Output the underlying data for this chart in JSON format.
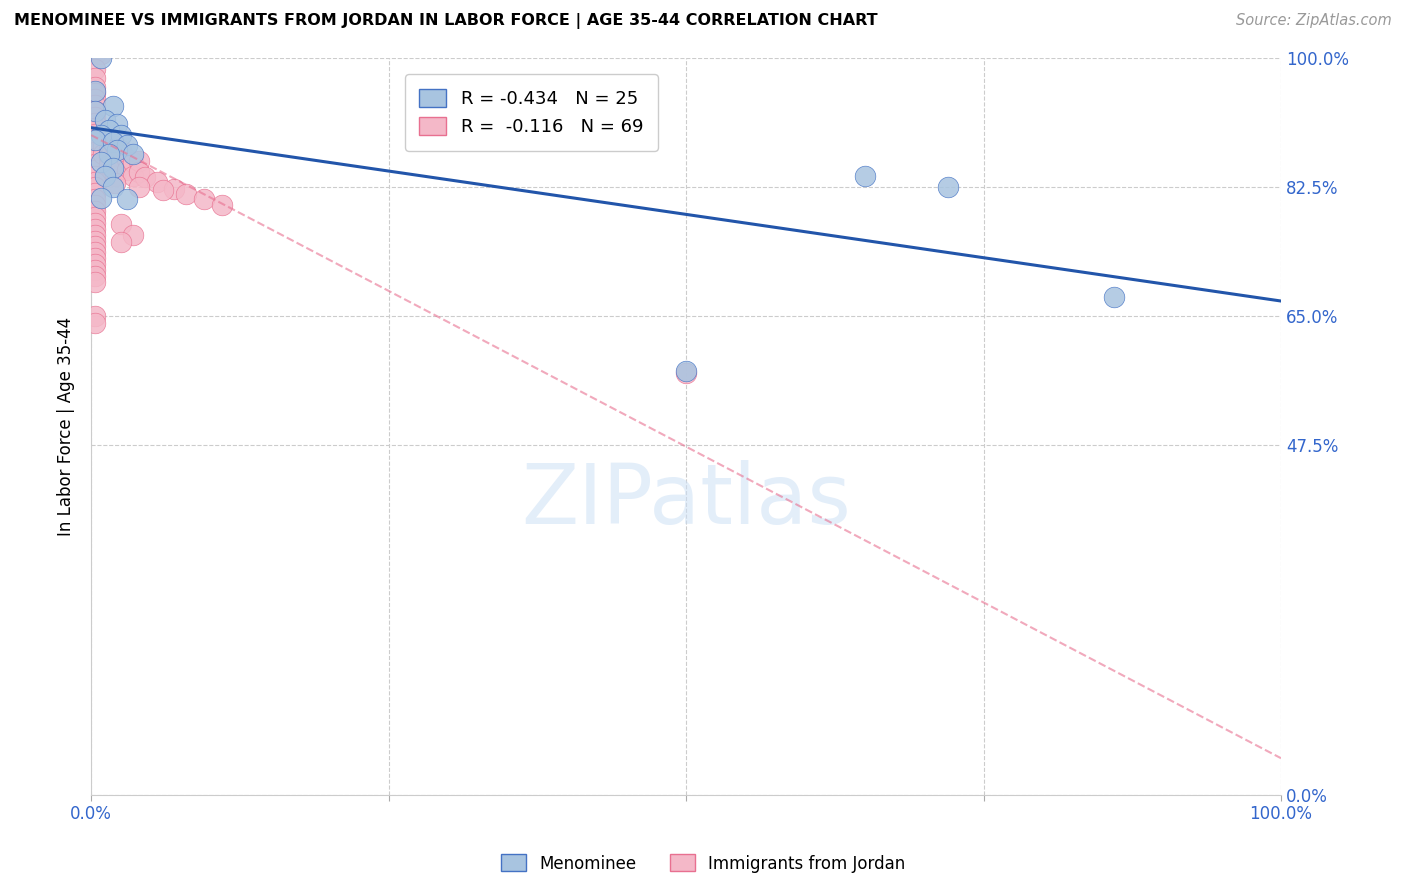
{
  "title": "MENOMINEE VS IMMIGRANTS FROM JORDAN IN LABOR FORCE | AGE 35-44 CORRELATION CHART",
  "source": "Source: ZipAtlas.com",
  "ylabel": "In Labor Force | Age 35-44",
  "xlim": [
    0.0,
    1.0
  ],
  "ylim": [
    0.0,
    1.0
  ],
  "ytick_labels": [
    "",
    "",
    "",
    "",
    ""
  ],
  "ytick_right_labels": [
    "100.0%",
    "82.5%",
    "65.0%",
    "47.5%",
    "0.0%"
  ],
  "ytick_right_values": [
    1.0,
    0.825,
    0.65,
    0.475,
    0.0
  ],
  "xtick_values": [
    0.0,
    0.25,
    0.5,
    0.75,
    1.0
  ],
  "xtick_labels": [
    "0.0%",
    "",
    "",
    "",
    "100.0%"
  ],
  "legend_r_blue": "-0.434",
  "legend_n_blue": "25",
  "legend_r_pink": "-0.116",
  "legend_n_pink": "69",
  "blue_fill": "#a8c4e0",
  "pink_fill": "#f4b8c8",
  "blue_edge": "#4472c4",
  "pink_edge": "#e87090",
  "blue_line": "#2255aa",
  "pink_line": "#e87090",
  "watermark_text": "ZIPatlas",
  "watermark_color": "#cce0f5",
  "menominee_points": [
    [
      0.008,
      1.0
    ],
    [
      0.003,
      0.955
    ],
    [
      0.018,
      0.935
    ],
    [
      0.003,
      0.928
    ],
    [
      0.012,
      0.915
    ],
    [
      0.022,
      0.91
    ],
    [
      0.015,
      0.902
    ],
    [
      0.008,
      0.895
    ],
    [
      0.025,
      0.895
    ],
    [
      0.003,
      0.888
    ],
    [
      0.018,
      0.885
    ],
    [
      0.03,
      0.882
    ],
    [
      0.022,
      0.875
    ],
    [
      0.015,
      0.87
    ],
    [
      0.035,
      0.87
    ],
    [
      0.008,
      0.858
    ],
    [
      0.018,
      0.85
    ],
    [
      0.012,
      0.84
    ],
    [
      0.018,
      0.825
    ],
    [
      0.008,
      0.81
    ],
    [
      0.03,
      0.808
    ],
    [
      0.5,
      0.575
    ],
    [
      0.65,
      0.84
    ],
    [
      0.72,
      0.825
    ],
    [
      0.86,
      0.675
    ]
  ],
  "jordan_points": [
    [
      0.003,
      1.005
    ],
    [
      0.008,
      1.005
    ],
    [
      0.003,
      0.985
    ],
    [
      0.003,
      0.972
    ],
    [
      0.003,
      0.96
    ],
    [
      0.003,
      0.952
    ],
    [
      0.003,
      0.944
    ],
    [
      0.003,
      0.936
    ],
    [
      0.003,
      0.928
    ],
    [
      0.003,
      0.92
    ],
    [
      0.003,
      0.912
    ],
    [
      0.003,
      0.904
    ],
    [
      0.003,
      0.896
    ],
    [
      0.003,
      0.888
    ],
    [
      0.003,
      0.88
    ],
    [
      0.003,
      0.872
    ],
    [
      0.003,
      0.864
    ],
    [
      0.003,
      0.856
    ],
    [
      0.003,
      0.848
    ],
    [
      0.003,
      0.84
    ],
    [
      0.003,
      0.832
    ],
    [
      0.003,
      0.824
    ],
    [
      0.003,
      0.816
    ],
    [
      0.003,
      0.808
    ],
    [
      0.003,
      0.8
    ],
    [
      0.003,
      0.792
    ],
    [
      0.003,
      0.784
    ],
    [
      0.003,
      0.776
    ],
    [
      0.003,
      0.768
    ],
    [
      0.003,
      0.76
    ],
    [
      0.003,
      0.752
    ],
    [
      0.003,
      0.744
    ],
    [
      0.003,
      0.736
    ],
    [
      0.003,
      0.728
    ],
    [
      0.003,
      0.72
    ],
    [
      0.003,
      0.712
    ],
    [
      0.003,
      0.704
    ],
    [
      0.003,
      0.696
    ],
    [
      0.003,
      0.65
    ],
    [
      0.003,
      0.64
    ],
    [
      0.01,
      0.88
    ],
    [
      0.01,
      0.87
    ],
    [
      0.015,
      0.875
    ],
    [
      0.015,
      0.865
    ],
    [
      0.015,
      0.855
    ],
    [
      0.02,
      0.88
    ],
    [
      0.02,
      0.86
    ],
    [
      0.02,
      0.84
    ],
    [
      0.025,
      0.875
    ],
    [
      0.025,
      0.855
    ],
    [
      0.03,
      0.862
    ],
    [
      0.03,
      0.848
    ],
    [
      0.035,
      0.858
    ],
    [
      0.035,
      0.84
    ],
    [
      0.04,
      0.86
    ],
    [
      0.04,
      0.845
    ],
    [
      0.045,
      0.838
    ],
    [
      0.055,
      0.832
    ],
    [
      0.07,
      0.822
    ],
    [
      0.08,
      0.815
    ],
    [
      0.095,
      0.808
    ],
    [
      0.11,
      0.8
    ],
    [
      0.025,
      0.775
    ],
    [
      0.035,
      0.76
    ],
    [
      0.025,
      0.75
    ],
    [
      0.02,
      0.83
    ],
    [
      0.04,
      0.825
    ],
    [
      0.06,
      0.82
    ],
    [
      0.5,
      0.572
    ]
  ],
  "blue_trendline_x": [
    0.0,
    1.0
  ],
  "blue_trendline_y": [
    0.905,
    0.67
  ],
  "pink_trendline_x": [
    0.0,
    1.0
  ],
  "pink_trendline_y": [
    0.895,
    0.05
  ]
}
